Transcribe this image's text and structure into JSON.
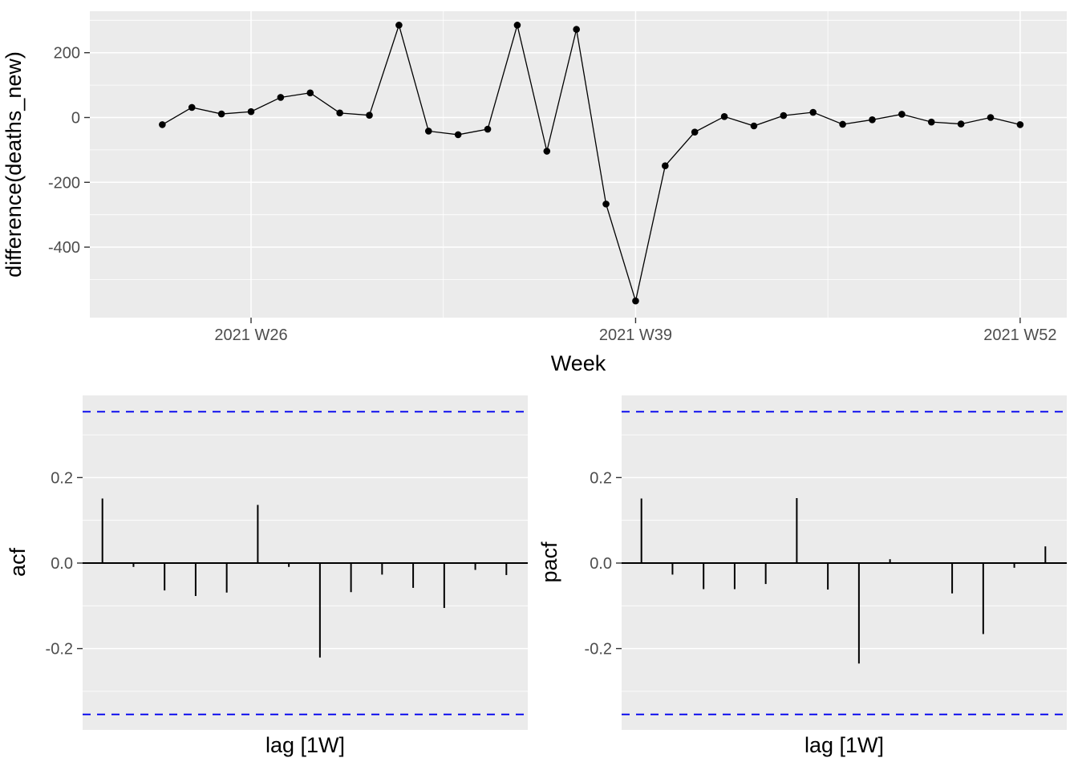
{
  "figure": {
    "background": "#ffffff",
    "panel_color": "#ebebeb",
    "grid_color": "#ffffff",
    "tick_mark_color": "#333333",
    "tick_label_color": "#4d4d4d",
    "axis_title_color": "#000000",
    "series_color": "#000000",
    "conf_line_color": "#0000ee"
  },
  "chart_data": [
    {
      "id": "diff",
      "type": "line",
      "ylabel": "difference(deaths_new)",
      "xlabel": "Week",
      "x_unit": "ISO week of 2021",
      "x_weeks": [
        23,
        24,
        25,
        26,
        27,
        28,
        29,
        30,
        31,
        32,
        33,
        34,
        35,
        36,
        37,
        38,
        39,
        40,
        41,
        42,
        43,
        44,
        45,
        46,
        47,
        48,
        49,
        50,
        51,
        52
      ],
      "values": [
        -22,
        31,
        11,
        18,
        62,
        76,
        14,
        7,
        285,
        -42,
        -53,
        -36,
        285,
        -104,
        272,
        -267,
        -566,
        -149,
        -45,
        3,
        -26,
        6,
        16,
        -21,
        -7,
        10,
        -14,
        -20,
        0,
        -22
      ],
      "x_ticks": [
        {
          "week": 26,
          "label": "2021 W26"
        },
        {
          "week": 39,
          "label": "2021 W39"
        },
        {
          "week": 52,
          "label": "2021 W52"
        }
      ],
      "x_minor_weeks": [
        32.5,
        45.5
      ],
      "y_ticks": [
        {
          "v": 200,
          "label": "200"
        },
        {
          "v": 0,
          "label": "0"
        },
        {
          "v": -200,
          "label": "-200"
        },
        {
          "v": -400,
          "label": "-400"
        }
      ],
      "y_minor": [
        300,
        100,
        -100,
        -300,
        -500
      ],
      "ylim": [
        -617,
        328
      ],
      "grid": true,
      "legend": "none"
    },
    {
      "id": "acf",
      "type": "bar",
      "ylabel": "acf",
      "xlabel": "lag [1W]",
      "lags": [
        1,
        2,
        3,
        4,
        5,
        6,
        7,
        8,
        9,
        10,
        11,
        12,
        13,
        14
      ],
      "values": [
        0.151,
        -0.009,
        -0.064,
        -0.077,
        -0.069,
        0.136,
        -0.009,
        -0.221,
        -0.068,
        -0.027,
        -0.058,
        -0.105,
        -0.016,
        -0.028
      ],
      "conf_bound": 0.354,
      "y_ticks": [
        {
          "v": 0.2,
          "label": "0.2"
        },
        {
          "v": 0.0,
          "label": "0.0"
        },
        {
          "v": -0.2,
          "label": "-0.2"
        }
      ],
      "y_minor": [
        0.3,
        0.1,
        -0.1,
        -0.3
      ],
      "ylim": [
        -0.392,
        0.392
      ],
      "grid": true,
      "legend": "none"
    },
    {
      "id": "pacf",
      "type": "bar",
      "ylabel": "pacf",
      "xlabel": "lag [1W]",
      "lags": [
        1,
        2,
        3,
        4,
        5,
        6,
        7,
        8,
        9,
        10,
        11,
        12,
        13,
        14
      ],
      "values": [
        0.151,
        -0.027,
        -0.061,
        -0.061,
        -0.049,
        0.152,
        -0.062,
        -0.235,
        0.009,
        0.001,
        -0.071,
        -0.166,
        -0.011,
        0.039
      ],
      "conf_bound": 0.354,
      "y_ticks": [
        {
          "v": 0.2,
          "label": "0.2"
        },
        {
          "v": 0.0,
          "label": "0.0"
        },
        {
          "v": -0.2,
          "label": "-0.2"
        }
      ],
      "y_minor": [
        0.3,
        0.1,
        -0.1,
        -0.3
      ],
      "ylim": [
        -0.392,
        0.392
      ],
      "grid": true,
      "legend": "none"
    }
  ]
}
